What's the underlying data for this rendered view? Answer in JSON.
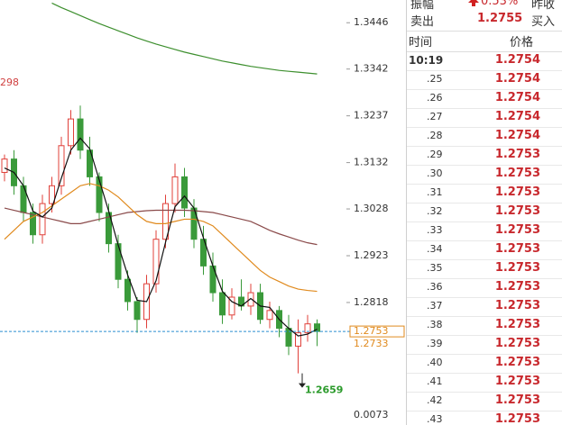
{
  "chart_data": {
    "type": "candlestick",
    "ylim": [
      1.2543,
      1.3497
    ],
    "yticks": [
      1.3446,
      1.3342,
      1.3237,
      1.3132,
      1.3028,
      1.2923,
      1.2818
    ],
    "volume_tick": 0.0073,
    "candles": {
      "open": [
        1.311,
        1.314,
        1.308,
        1.302,
        1.297,
        1.304,
        1.308,
        1.317,
        1.323,
        1.316,
        1.31,
        1.302,
        1.295,
        1.287,
        1.282,
        1.278,
        1.286,
        1.296,
        1.304,
        1.31,
        1.303,
        1.296,
        1.29,
        1.284,
        1.279,
        1.283,
        1.281,
        1.284,
        1.278,
        1.28,
        1.276,
        1.272,
        1.275,
        1.277
      ],
      "high": [
        1.315,
        1.316,
        1.31,
        1.304,
        1.306,
        1.31,
        1.319,
        1.325,
        1.326,
        1.319,
        1.311,
        1.304,
        1.297,
        1.289,
        1.283,
        1.288,
        1.298,
        1.306,
        1.313,
        1.312,
        1.305,
        1.299,
        1.293,
        1.287,
        1.285,
        1.287,
        1.286,
        1.286,
        1.282,
        1.281,
        1.279,
        1.278,
        1.279,
        1.278
      ],
      "low": [
        1.309,
        1.306,
        1.3,
        1.295,
        1.295,
        1.302,
        1.306,
        1.315,
        1.314,
        1.308,
        1.3,
        1.293,
        1.285,
        1.28,
        1.275,
        1.276,
        1.284,
        1.294,
        1.302,
        1.301,
        1.294,
        1.288,
        1.282,
        1.277,
        1.278,
        1.28,
        1.279,
        1.277,
        1.276,
        1.274,
        1.27,
        1.2659,
        1.273,
        1.272
      ],
      "close": [
        1.314,
        1.308,
        1.302,
        1.297,
        1.304,
        1.308,
        1.317,
        1.323,
        1.316,
        1.31,
        1.302,
        1.295,
        1.287,
        1.282,
        1.278,
        1.286,
        1.296,
        1.304,
        1.31,
        1.303,
        1.296,
        1.29,
        1.284,
        1.279,
        1.283,
        1.281,
        1.284,
        1.278,
        1.28,
        1.276,
        1.272,
        1.275,
        1.277,
        1.2753
      ]
    },
    "moving_averages": [
      {
        "color": "#3d8f2e",
        "values": [
          null,
          null,
          null,
          null,
          null,
          1.349,
          1.348,
          1.3471,
          1.3462,
          1.3453,
          1.3444,
          1.3436,
          1.3428,
          1.342,
          1.3412,
          1.3405,
          1.3398,
          1.3392,
          1.3386,
          1.338,
          1.3375,
          1.337,
          1.3365,
          1.336,
          1.3356,
          1.3352,
          1.3348,
          1.3345,
          1.3342,
          1.3339,
          1.3337,
          1.3335,
          1.3333,
          1.3331
        ]
      },
      {
        "color": "#8a4a4a",
        "values": [
          1.303,
          1.3025,
          1.302,
          1.3015,
          1.301,
          1.3005,
          1.3,
          1.2995,
          1.2995,
          1.3,
          1.3005,
          1.301,
          1.3015,
          1.302,
          1.3022,
          1.3024,
          1.3025,
          1.3025,
          1.3025,
          1.3025,
          1.3024,
          1.3022,
          1.302,
          1.3015,
          1.301,
          1.3005,
          1.3,
          1.299,
          1.298,
          1.2972,
          1.2965,
          1.2958,
          1.2952,
          1.2948
        ]
      },
      {
        "color": "#e08a1e",
        "values": [
          1.296,
          1.298,
          1.3,
          1.301,
          1.302,
          1.3035,
          1.305,
          1.3065,
          1.308,
          1.3085,
          1.308,
          1.307,
          1.3055,
          1.3035,
          1.3015,
          1.3,
          1.2995,
          1.2995,
          1.3,
          1.3005,
          1.3005,
          1.3,
          1.299,
          1.297,
          1.295,
          1.293,
          1.291,
          1.289,
          1.2875,
          1.2865,
          1.2855,
          1.2848,
          1.2845,
          1.2843
        ]
      },
      {
        "color": "#111111",
        "values": [
          1.312,
          1.311,
          1.308,
          1.3023,
          1.301,
          1.303,
          1.3097,
          1.316,
          1.3187,
          1.3163,
          1.3093,
          1.3023,
          1.2947,
          1.288,
          1.2823,
          1.282,
          1.2867,
          1.2953,
          1.3033,
          1.3057,
          1.303,
          1.2963,
          1.29,
          1.2843,
          1.282,
          1.281,
          1.2827,
          1.281,
          1.2807,
          1.278,
          1.276,
          1.2743,
          1.2747,
          1.2758
        ]
      }
    ],
    "up_color": "#e0403a",
    "down_color": "#3a9a3a",
    "last_price": 1.2753,
    "second_price": 1.2733,
    "low_label": 1.2659,
    "edge_label": "298"
  },
  "quote": {
    "rows": [
      [
        "振幅",
        "0.53%",
        "昨收"
      ],
      [
        "卖出",
        "1.2755",
        "买入"
      ]
    ]
  },
  "trades": {
    "header": [
      "时间",
      "价格"
    ],
    "rows": [
      [
        "10:19",
        "1.2754"
      ],
      [
        ".25",
        "1.2754"
      ],
      [
        ".26",
        "1.2754"
      ],
      [
        ".27",
        "1.2754"
      ],
      [
        ".28",
        "1.2754"
      ],
      [
        ".29",
        "1.2753"
      ],
      [
        ".30",
        "1.2753"
      ],
      [
        ".31",
        "1.2753"
      ],
      [
        ".32",
        "1.2753"
      ],
      [
        ".33",
        "1.2753"
      ],
      [
        ".34",
        "1.2753"
      ],
      [
        ".35",
        "1.2753"
      ],
      [
        ".36",
        "1.2753"
      ],
      [
        ".37",
        "1.2753"
      ],
      [
        ".38",
        "1.2753"
      ],
      [
        ".39",
        "1.2753"
      ],
      [
        ".40",
        "1.2753"
      ],
      [
        ".41",
        "1.2753"
      ],
      [
        ".42",
        "1.2753"
      ],
      [
        ".43",
        "1.2753"
      ]
    ]
  }
}
